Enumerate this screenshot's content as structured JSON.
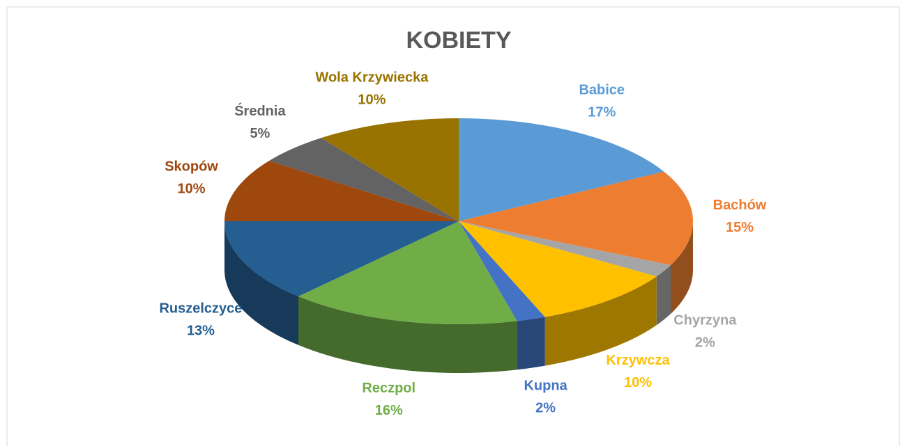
{
  "chart_data": {
    "type": "pie3d",
    "title": "KOBIETY",
    "categories": [
      "Babice",
      "Bachów",
      "Chyrzyna",
      "Krzywcza",
      "Kupna",
      "Reczpol",
      "Ruszelczyce",
      "Skopów",
      "Średnia",
      "Wola Krzywiecka"
    ],
    "values": [
      17,
      15,
      2,
      10,
      2,
      16,
      13,
      10,
      5,
      10
    ],
    "value_labels": [
      "17%",
      "15%",
      "2%",
      "10%",
      "2%",
      "16%",
      "13%",
      "10%",
      "5%",
      "10%"
    ],
    "colors": [
      "#5b9bd5",
      "#ed7d31",
      "#a5a5a5",
      "#ffc000",
      "#4472c4",
      "#70ad47",
      "#255e91",
      "#9e480e",
      "#636363",
      "#997300"
    ]
  }
}
